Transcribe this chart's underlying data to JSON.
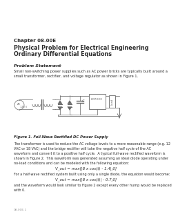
{
  "title_chapter": "Chapter 08.00E",
  "title_main1": "Physical Problem for Electrical Engineering",
  "title_main2": "Ordinary Differential Equations",
  "section_label": "Problem Statement",
  "body_text1": "Small non-switching power supplies such as AC power bricks are typically built around a",
  "body_text2": "small transformer, rectifier, and voltage regulator as shown in Figure 1.",
  "figure_caption": "Figure 1. Full-Wave Rectified DC Power Supply",
  "body_text3": "The transformer is used to reduce the AC voltage levels to a more reasonable range (e.g. 12",
  "body_text4": "VAC or 18 VAC) and the bridge rectifier will take the negative half cycle of the AC",
  "body_text5": "waveform and convert it to a positive half cycle.  A typical full-wave rectified waveform is",
  "body_text6": "shown in Figure 2.  This waveform was generated assuming an ideal diode operating under",
  "body_text7": "no-load conditions and can be modeled with the following equation:",
  "equation1": "V_out = max[|8 x cos(t) - 1.4|,0]",
  "body_text8": "For a half-wave rectified system built using only a single diode, the equation would become:",
  "equation2": "V_out = max[|8 x cos(t)| - 0.7,0]",
  "body_text9": "and the waveform would look similar to Figure 2 except every other hump would be replaced",
  "body_text10": "with 0.",
  "page_num": "08.00E.1",
  "bg_color": "#ffffff",
  "text_color": "#2b2b2b",
  "gray_text": "#999999",
  "circuit_color": "#666666"
}
